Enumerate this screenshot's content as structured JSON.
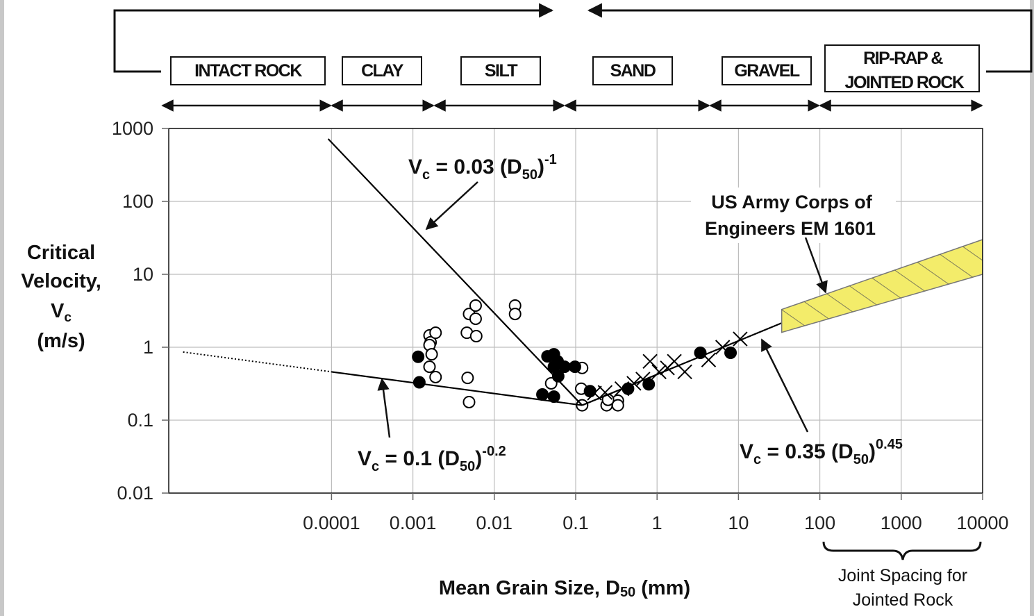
{
  "chart_data": {
    "type": "scatter",
    "log_x": true,
    "log_y": true,
    "grid": true,
    "xlim": [
      1e-06,
      10000
    ],
    "ylim": [
      0.01,
      1000
    ],
    "xticks": [
      0.0001,
      0.001,
      0.01,
      0.1,
      1,
      10,
      100,
      1000,
      10000
    ],
    "yticks": [
      0.01,
      0.1,
      1,
      10,
      100,
      1000
    ],
    "x_label": [
      "Mean Grain Size, D",
      "50",
      " (mm)"
    ],
    "y_label": [
      "Critical",
      "Velocity,",
      "V",
      "c",
      "(m/s)"
    ],
    "soil_classes": [
      [
        "INTACT ROCK"
      ],
      [
        "CLAY"
      ],
      [
        "SILT"
      ],
      [
        "SAND"
      ],
      [
        "GRAVEL"
      ],
      [
        "RIP-RAP &",
        "JOINTED ROCK"
      ]
    ],
    "annotations": {
      "eq_steep": [
        "V",
        "c",
        " = 0.03 (D",
        "50",
        ")",
        "-1"
      ],
      "eq_fine": [
        "V",
        "c",
        " = 0.1 (D",
        "50",
        ")",
        "-0.2"
      ],
      "eq_coarse": [
        "V",
        "c",
        " = 0.35 (D",
        "50",
        ")",
        "0.45"
      ],
      "usace": [
        "US Army Corps of",
        "Engineers EM 1601"
      ],
      "joint": [
        "Joint Spacing for",
        "Jointed Rock"
      ]
    },
    "series": [
      {
        "type": "scatter",
        "marker": "open-circle",
        "color": "#000000",
        "x": [
          0.0016,
          0.00165,
          0.0016,
          0.0017,
          0.0016,
          0.0019,
          0.0019,
          0.0049,
          0.0059,
          0.0059,
          0.0046,
          0.006,
          0.0047,
          0.0049,
          0.018,
          0.018,
          0.05,
          0.12,
          0.117,
          0.12,
          0.24,
          0.33,
          0.33,
          0.25
        ],
        "y": [
          1.45,
          1.17,
          1.07,
          0.8,
          0.54,
          1.58,
          0.39,
          2.86,
          3.73,
          2.46,
          1.58,
          1.42,
          0.38,
          0.177,
          3.73,
          2.86,
          0.32,
          0.52,
          0.27,
          0.16,
          0.16,
          0.185,
          0.16,
          0.19
        ]
      },
      {
        "type": "scatter",
        "marker": "filled-circle",
        "color": "#000000",
        "x": [
          0.00116,
          0.0012,
          0.045,
          0.054,
          0.054,
          0.061,
          0.073,
          0.098,
          0.039,
          0.054,
          0.15,
          0.44,
          0.79,
          3.4,
          8,
          0.06
        ],
        "y": [
          0.74,
          0.33,
          0.75,
          0.8,
          0.54,
          0.4,
          0.54,
          0.54,
          0.225,
          0.21,
          0.25,
          0.27,
          0.31,
          0.84,
          0.84,
          0.64
        ]
      },
      {
        "type": "scatter",
        "marker": "cross",
        "color": "#000000",
        "x": [
          0.17,
          0.23,
          0.37,
          0.52,
          0.67,
          0.82,
          1.06,
          1.34,
          1.63,
          2.19,
          4.3,
          6.4,
          10.5
        ],
        "y": [
          0.235,
          0.24,
          0.27,
          0.32,
          0.365,
          0.64,
          0.46,
          0.52,
          0.64,
          0.46,
          0.67,
          1,
          1.3
        ]
      },
      {
        "type": "line",
        "style": "solid",
        "color": "#000000",
        "x": [
          9.1e-05,
          0.12
        ],
        "y": [
          720,
          0.16
        ]
      },
      {
        "type": "line",
        "style": "dotted",
        "color": "#000000",
        "x": [
          1.5e-06,
          0.0001
        ],
        "y": [
          0.86,
          0.46
        ]
      },
      {
        "type": "line",
        "style": "solid",
        "color": "#000000",
        "x": [
          0.0001,
          0.12
        ],
        "y": [
          0.46,
          0.16
        ]
      },
      {
        "type": "line",
        "style": "solid",
        "color": "#000000",
        "x": [
          0.12,
          34
        ],
        "y": [
          0.16,
          2.15
        ]
      },
      {
        "type": "band",
        "color": "#f3ec6a",
        "x": [
          34,
          10000
        ],
        "upper": [
          3.3,
          30
        ],
        "lower": [
          1.6,
          10
        ]
      }
    ]
  }
}
